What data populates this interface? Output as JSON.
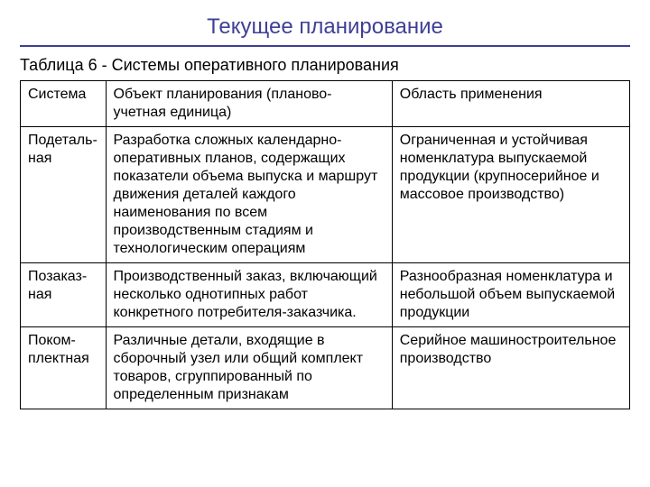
{
  "title": "Текущее планирование",
  "caption": "Таблица 6 - Системы оперативного планирования",
  "page_mark": "",
  "colors": {
    "title_color": "#3f3f96",
    "rule_color": "#3f3f96",
    "border_color": "#000000",
    "text_color": "#000000",
    "background": "#ffffff"
  },
  "table": {
    "type": "table",
    "column_widths_pct": [
      14,
      47,
      39
    ],
    "font_size_pt": 16,
    "header": {
      "c0": "Система",
      "c1": "Объект планирования (планово-учетная единица)",
      "c2": "Область применения"
    },
    "rows": [
      {
        "c0": "Подеталь-ная",
        "c1": "Разработка сложных календарно-оперативных планов, содержащих показатели объема выпуска и маршрут движения деталей каждого наименования по всем производственным стадиям и технологическим операциям",
        "c2": "Ограниченная и устойчивая номенклатура выпускаемой продукции (крупносерийное и массовое производство)"
      },
      {
        "c0": "Позаказ-ная",
        "c1": "Производственный заказ, включающий несколько однотипных работ конкретного потребителя-заказчика.",
        "c2": "Разнообразная номенклатура и небольшой объем выпускаемой продукции"
      },
      {
        "c0": "Поком-плектная",
        "c1": "Различные детали, входящие в сборочный узел или общий комплект товаров, сгруппированный по определенным признакам",
        "c2": "Серийное машиностроительное производство"
      }
    ]
  }
}
